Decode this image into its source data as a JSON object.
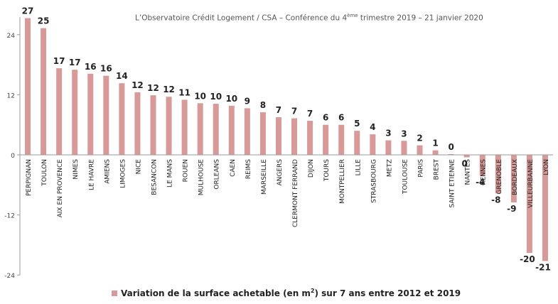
{
  "source_note": {
    "prefix": "L’Observatoire Crédit Logement / CSA – Conférence du 4",
    "superscript": "ème",
    "suffix": " trimestre 2019 – 21 janvier 2020"
  },
  "legend": {
    "prefix": "Variation de la surface achetable (en m",
    "superscript": "2",
    "suffix": ") sur 7 ans entre 2012 et 2019"
  },
  "colors": {
    "bar": "#d89a98",
    "axis": "#999999",
    "gridline": "#d9d9d9",
    "text": "#222222"
  },
  "chart_data": {
    "type": "bar",
    "categories": [
      "PERPIGNAN",
      "TOULON",
      "AIX EN PROVENCE",
      "NIMES",
      "LE HAVRE",
      "AMIENS",
      "LIMOGES",
      "NICE",
      "BESANCON",
      "LE MANS",
      "ROUEN",
      "MULHOUSE",
      "ORLEANS",
      "CAEN",
      "REIMS",
      "MARSEILLE",
      "ANGERS",
      "CLERMONT FERRAND",
      "DIJON",
      "TOURS",
      "MONTPELLIER",
      "LILLE",
      "STRASBOURG",
      "METZ",
      "TOULOUSE",
      "PARIS",
      "BREST",
      "SAINT ETIENNE",
      "NANTES",
      "RENNES",
      "GRENOBLE",
      "BORDEAUX",
      "VILLEURBANNE",
      "LYON"
    ],
    "series": [
      {
        "name": "Variation de la surface achetable (en m²) sur 7 ans entre 2012 et 2019",
        "values": [
          27,
          25,
          17,
          17,
          16,
          16,
          14,
          12,
          12,
          12,
          11,
          10,
          10,
          10,
          9,
          8,
          7,
          7,
          7,
          6,
          6,
          5,
          4,
          3,
          3,
          2,
          1,
          0,
          0,
          -4,
          -8,
          -9,
          -20,
          -21
        ],
        "labels": [
          "27",
          "25",
          "17",
          "17",
          "16",
          "16",
          "14",
          "12",
          "12",
          "12",
          "11",
          "10",
          "10",
          "10",
          "9",
          "8",
          "7",
          "7",
          "7",
          "6",
          "6",
          "5",
          "4",
          "3",
          "3",
          "2",
          "1",
          "0",
          "0",
          "-4",
          "-8",
          "-9",
          "-20",
          "-21"
        ],
        "plot_values": [
          27.3,
          25.3,
          17.3,
          17.0,
          16.2,
          15.8,
          14.3,
          12.5,
          11.9,
          11.6,
          11.0,
          10.3,
          10.2,
          9.8,
          9.3,
          8.5,
          7.5,
          7.3,
          6.8,
          6.0,
          6.0,
          4.8,
          4.1,
          2.9,
          2.8,
          1.9,
          0.9,
          0.15,
          -0.5,
          -4.2,
          -7.7,
          -9.5,
          -19.6,
          -21.2
        ]
      }
    ],
    "ylim": [
      -24,
      27.5
    ],
    "yticks": [
      24,
      12,
      0,
      -12,
      -24
    ],
    "grid": false,
    "legend_position": "bottom",
    "xlabel": "",
    "ylabel": ""
  }
}
